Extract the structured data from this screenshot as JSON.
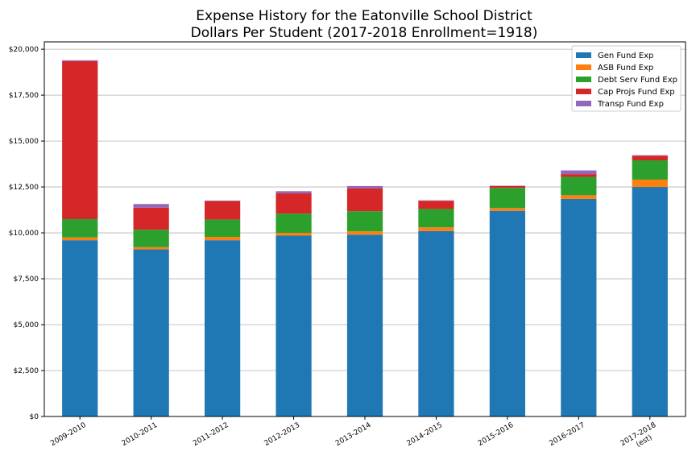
{
  "chart_data": {
    "type": "bar",
    "stacked": true,
    "title": [
      "Expense History for the Eatonville School District",
      "Dollars Per Student (2017-2018 Enrollment=1918)"
    ],
    "xlabel": "",
    "ylabel": "",
    "categories": [
      [
        "2009-2010"
      ],
      [
        "2010-2011"
      ],
      [
        "2011-2012"
      ],
      [
        "2012-2013"
      ],
      [
        "2013-2014"
      ],
      [
        "2014-2015"
      ],
      [
        "2015-2016"
      ],
      [
        "2016-2017"
      ],
      [
        "2017-2018",
        "(est)"
      ]
    ],
    "ylim": [
      0,
      20400
    ],
    "yticks": [
      0,
      2500,
      5000,
      7500,
      10000,
      12500,
      15000,
      17500,
      20000
    ],
    "ytick_labels": [
      "$0",
      "$2,500",
      "$5,000",
      "$7,500",
      "$10,000",
      "$12,500",
      "$15,000",
      "$17,500",
      "$20,000"
    ],
    "grid": "horizontal",
    "legend_position": "top-right",
    "series": [
      {
        "name": "Gen Fund Exp",
        "color": "#1f77b4",
        "values": [
          9600,
          9100,
          9600,
          9850,
          9900,
          10100,
          11200,
          11850,
          12500
        ]
      },
      {
        "name": "ASB Fund Exp",
        "color": "#ff7f0e",
        "values": [
          150,
          120,
          180,
          150,
          180,
          200,
          150,
          200,
          400
        ]
      },
      {
        "name": "Debt Serv Fund Exp",
        "color": "#2ca02c",
        "values": [
          1000,
          950,
          950,
          1050,
          1100,
          1000,
          1100,
          1000,
          1050
        ]
      },
      {
        "name": "Cap Projs Fund Exp",
        "color": "#d62728",
        "values": [
          8600,
          1200,
          1000,
          1100,
          1250,
          450,
          100,
          150,
          250
        ]
      },
      {
        "name": "Transp Fund Exp",
        "color": "#9467bd",
        "values": [
          50,
          200,
          30,
          120,
          120,
          20,
          20,
          200,
          30
        ]
      }
    ]
  }
}
